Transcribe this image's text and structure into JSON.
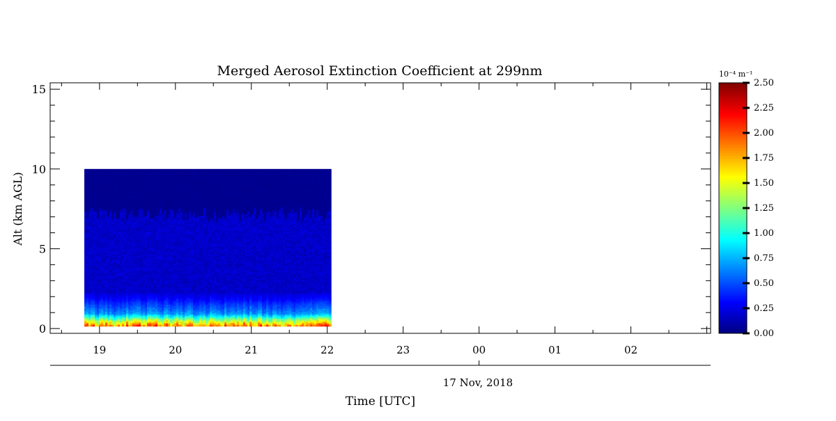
{
  "chart_data": {
    "type": "heatmap",
    "title": "Merged Aerosol Extinction Coefficient at 299nm",
    "xlabel": "Time [UTC]",
    "ylabel": "Alt (km AGL)",
    "date_label": "17 Nov, 2018",
    "x_tick_labels": [
      "19",
      "20",
      "21",
      "22",
      "23",
      "00",
      "01",
      "02"
    ],
    "y_tick_labels": [
      "0",
      "5",
      "10",
      "15"
    ],
    "y_ticks": [
      0,
      5,
      10,
      15
    ],
    "ylim": [
      -0.3,
      15.4
    ],
    "xlim_hours": [
      18.35,
      27.05
    ],
    "x_ticks_hours": [
      19,
      20,
      21,
      22,
      23,
      24,
      25,
      26
    ],
    "data_extent": {
      "time_start_hours": 18.8,
      "time_end_hours": 22.05,
      "alt_min_km": 0.15,
      "alt_max_km": 10.0
    },
    "colorbar": {
      "unit": "10⁻⁴ m⁻¹",
      "min": 0.0,
      "max": 2.5,
      "tick_labels": [
        "0.00",
        "0.25",
        "0.50",
        "0.75",
        "1.00",
        "1.25",
        "1.50",
        "1.75",
        "2.00",
        "2.25",
        "2.50"
      ],
      "colormap": "jet"
    },
    "profile_typical": [
      {
        "alt_km": 0.15,
        "value": 1.9
      },
      {
        "alt_km": 0.3,
        "value": 1.65
      },
      {
        "alt_km": 0.5,
        "value": 1.35
      },
      {
        "alt_km": 0.7,
        "value": 1.0
      },
      {
        "alt_km": 0.9,
        "value": 0.7
      },
      {
        "alt_km": 1.2,
        "value": 0.55
      },
      {
        "alt_km": 1.5,
        "value": 0.45
      },
      {
        "alt_km": 1.8,
        "value": 0.33
      },
      {
        "alt_km": 2.2,
        "value": 0.22
      },
      {
        "alt_km": 3.0,
        "value": 0.2
      },
      {
        "alt_km": 4.0,
        "value": 0.2
      },
      {
        "alt_km": 5.0,
        "value": 0.2
      },
      {
        "alt_km": 6.0,
        "value": 0.2
      },
      {
        "alt_km": 7.0,
        "value": 0.2
      },
      {
        "alt_km": 7.5,
        "value": 0.1
      },
      {
        "alt_km": 8.0,
        "value": 0.03
      },
      {
        "alt_km": 10.0,
        "value": 0.03
      }
    ]
  }
}
